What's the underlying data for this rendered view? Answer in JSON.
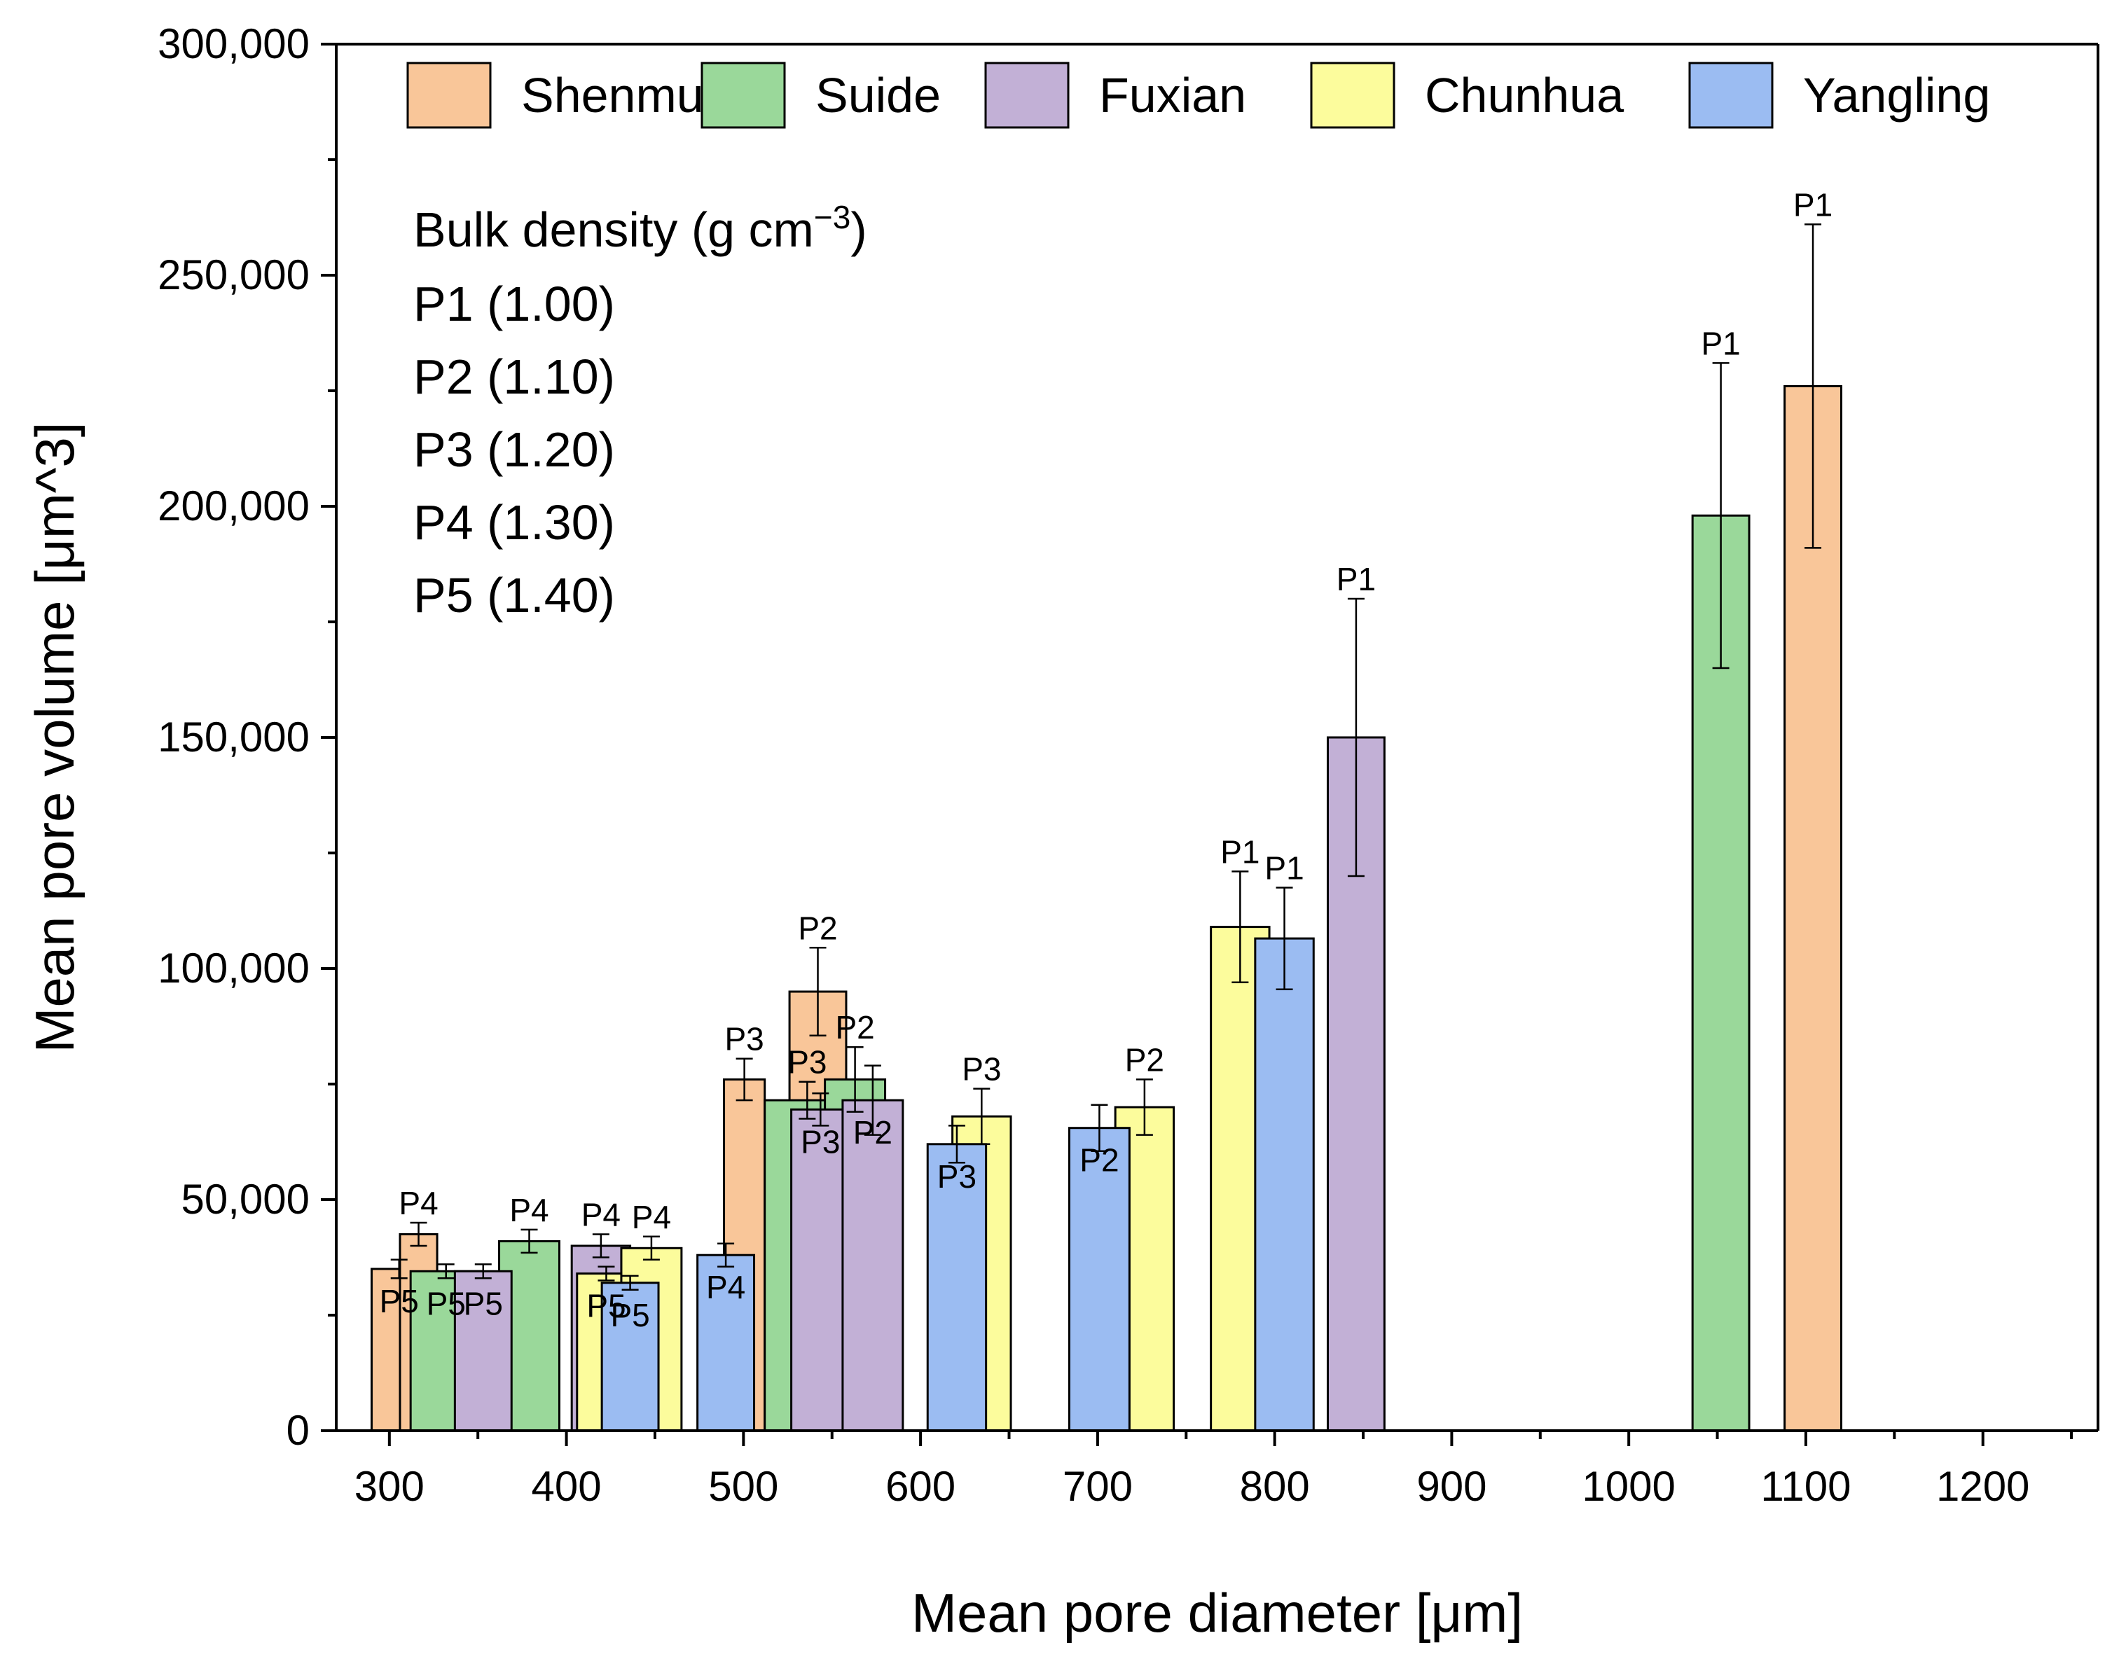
{
  "chart_data": {
    "type": "bar",
    "title": "",
    "xlabel": "Mean pore diameter [μm]",
    "ylabel": "Mean pore volume [μm^3]",
    "xlim": [
      270,
      1265
    ],
    "ylim": [
      0,
      300000
    ],
    "x_ticks": [
      "300",
      "400",
      "500",
      "600",
      "700",
      "800",
      "900",
      "1000",
      "1100",
      "1200"
    ],
    "y_ticks": [
      "0",
      "50,000",
      "100,000",
      "150,000",
      "200,000",
      "250,000",
      "300,000"
    ],
    "legend_position": "top",
    "legend": [
      {
        "name": "Shenmu",
        "color": "#F9C699"
      },
      {
        "name": "Suide",
        "color": "#9AD89A"
      },
      {
        "name": "Fuxian",
        "color": "#C2B0D6"
      },
      {
        "name": "Chunhua",
        "color": "#FCFC9C"
      },
      {
        "name": "Yangling",
        "color": "#9BBCF2"
      }
    ],
    "annotation": {
      "title": "Bulk density (g cm",
      "title_sup": "−3",
      "title_end": ")",
      "lines": [
        "P1 (1.00)",
        "P2 (1.10)",
        "P3 (1.20)",
        "P4 (1.30)",
        "P5 (1.40)"
      ]
    },
    "series": [
      {
        "name": "Shenmu",
        "color": "#F9C699",
        "points": [
          {
            "label": "P5",
            "x_start": 290,
            "x_end": 321,
            "value": 35000,
            "err": 2000,
            "label_pos": "below"
          },
          {
            "label": "P4",
            "x_start": 306,
            "x_end": 327,
            "value": 42500,
            "err": 2500,
            "label_pos": "above"
          },
          {
            "label": "P3",
            "x_start": 489,
            "x_end": 512,
            "value": 76000,
            "err": 4500,
            "label_pos": "above"
          },
          {
            "label": "P2",
            "x_start": 526,
            "x_end": 558,
            "value": 95000,
            "err": 9500,
            "label_pos": "above"
          },
          {
            "label": "P1",
            "x_start": 1088,
            "x_end": 1120,
            "value": 226000,
            "err": 35000,
            "label_pos": "above"
          }
        ]
      },
      {
        "name": "Suide",
        "color": "#9AD89A",
        "points": [
          {
            "label": "P5",
            "x_start": 312,
            "x_end": 352,
            "value": 34500,
            "err": 1500,
            "label_pos": "below"
          },
          {
            "label": "P4",
            "x_start": 362,
            "x_end": 396,
            "value": 41000,
            "err": 2500,
            "label_pos": "above"
          },
          {
            "label": "P3",
            "x_start": 512,
            "x_end": 560,
            "value": 71500,
            "err": 4000,
            "label_pos": "above"
          },
          {
            "label": "P2",
            "x_start": 546,
            "x_end": 580,
            "value": 76000,
            "err": 7000,
            "label_pos": "above"
          },
          {
            "label": "P1",
            "x_start": 1036,
            "x_end": 1068,
            "value": 198000,
            "err": 33000,
            "label_pos": "above"
          }
        ]
      },
      {
        "name": "Fuxian",
        "color": "#C2B0D6",
        "points": [
          {
            "label": "P5",
            "x_start": 337,
            "x_end": 369,
            "value": 34500,
            "err": 1500,
            "label_pos": "below"
          },
          {
            "label": "P4",
            "x_start": 403,
            "x_end": 436,
            "value": 40000,
            "err": 2500,
            "label_pos": "above"
          },
          {
            "label": "P3",
            "x_start": 527,
            "x_end": 560,
            "value": 69500,
            "err": 3500,
            "label_pos": "below"
          },
          {
            "label": "P2",
            "x_start": 556,
            "x_end": 590,
            "value": 71500,
            "err": 7500,
            "label_pos": "below"
          },
          {
            "label": "P1",
            "x_start": 830,
            "x_end": 862,
            "value": 150000,
            "err": 30000,
            "label_pos": "above"
          }
        ]
      },
      {
        "name": "Chunhua",
        "color": "#FCFC9C",
        "points": [
          {
            "label": "P5",
            "x_start": 406,
            "x_end": 439,
            "value": 34000,
            "err": 1500,
            "label_pos": "below"
          },
          {
            "label": "P4",
            "x_start": 431,
            "x_end": 465,
            "value": 39500,
            "err": 2500,
            "label_pos": "above"
          },
          {
            "label": "P3",
            "x_start": 618,
            "x_end": 651,
            "value": 68000,
            "err": 6000,
            "label_pos": "above"
          },
          {
            "label": "P2",
            "x_start": 710,
            "x_end": 743,
            "value": 70000,
            "err": 6000,
            "label_pos": "above"
          },
          {
            "label": "P1",
            "x_start": 764,
            "x_end": 797,
            "value": 109000,
            "err": 12000,
            "label_pos": "above"
          }
        ]
      },
      {
        "name": "Yangling",
        "color": "#9BBCF2",
        "points": [
          {
            "label": "P5",
            "x_start": 420,
            "x_end": 452,
            "value": 32000,
            "err": 1500,
            "label_pos": "below"
          },
          {
            "label": "P4",
            "x_start": 474,
            "x_end": 506,
            "value": 38000,
            "err": 2500,
            "label_pos": "below"
          },
          {
            "label": "P3",
            "x_start": 604,
            "x_end": 637,
            "value": 62000,
            "err": 4000,
            "label_pos": "below"
          },
          {
            "label": "P2",
            "x_start": 684,
            "x_end": 718,
            "value": 65500,
            "err": 5000,
            "label_pos": "below"
          },
          {
            "label": "P1",
            "x_start": 789,
            "x_end": 822,
            "value": 106500,
            "err": 11000,
            "label_pos": "above"
          }
        ]
      }
    ]
  }
}
